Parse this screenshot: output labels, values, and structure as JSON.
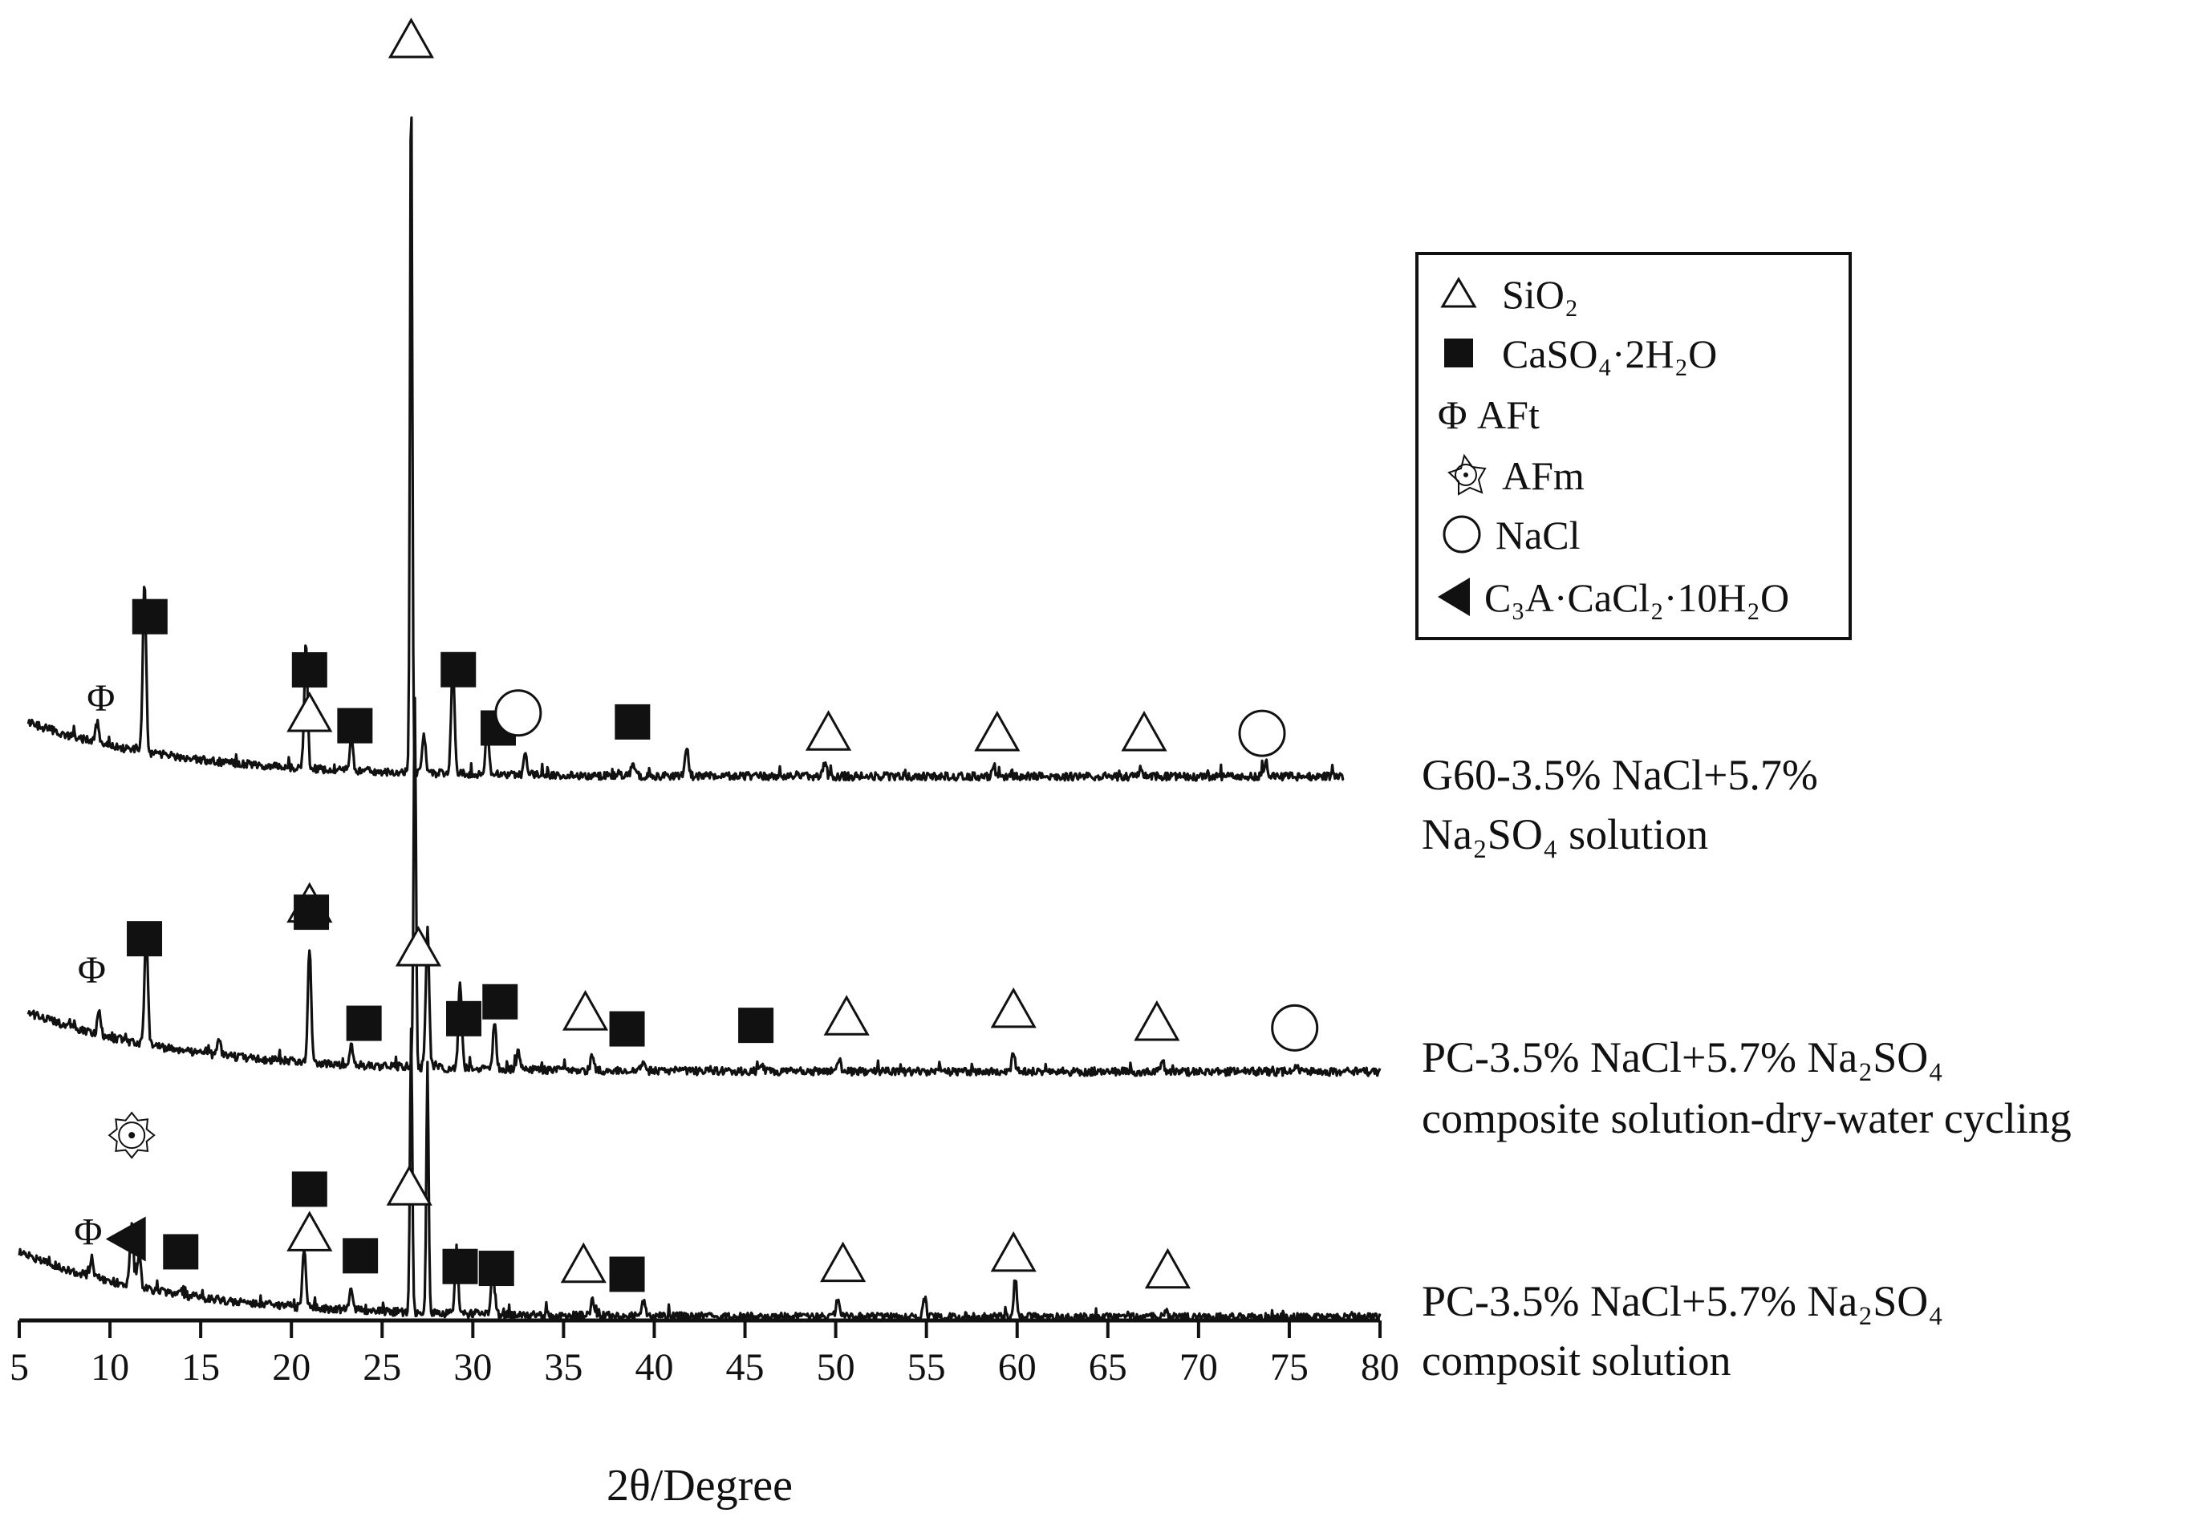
{
  "chart_data": {
    "type": "line",
    "title": "",
    "xlabel": "2θ/Degree",
    "ylabel": "",
    "xlim": [
      5,
      80
    ],
    "xticks": [
      5,
      10,
      15,
      20,
      25,
      30,
      35,
      40,
      45,
      50,
      55,
      60,
      65,
      70,
      75,
      80
    ],
    "legend": {
      "placement": "top-right",
      "entries": [
        {
          "symbol": "triangle-open",
          "label": "SiO₂"
        },
        {
          "symbol": "square-filled",
          "label": "CaSO₄·2H₂O"
        },
        {
          "symbol": "phi",
          "label": "Φ AFt"
        },
        {
          "symbol": "afm",
          "label": "AFm"
        },
        {
          "symbol": "circle-open",
          "label": "NaCl"
        },
        {
          "symbol": "triangle-left-filled",
          "label": "C₃A·CaCl₂·10H₂O"
        }
      ]
    },
    "series": [
      {
        "name": "G60-3.5% NaCl+5.7% Na₂SO₄ solution",
        "label_lines": [
          "G60-3.5% NaCl+5.7%",
          "Na₂SO₄ solution"
        ],
        "x_range": [
          5.5,
          78
        ],
        "peaks": [
          [
            9.3,
            0.05
          ],
          [
            11.9,
            0.42
          ],
          [
            20.8,
            0.31
          ],
          [
            23.3,
            0.08
          ],
          [
            26.6,
            1.72
          ],
          [
            27.3,
            0.1
          ],
          [
            28.9,
            0.28
          ],
          [
            30.8,
            0.12
          ],
          [
            32.9,
            0.05
          ],
          [
            38.8,
            0.03
          ],
          [
            41.8,
            0.07
          ],
          [
            49.4,
            0.03
          ],
          [
            58.7,
            0.02
          ],
          [
            66.8,
            0.02
          ],
          [
            73.7,
            0.04
          ]
        ],
        "phase_markers": [
          {
            "type": "phi",
            "x": 9.5,
            "text": "Φ"
          },
          {
            "type": "square",
            "x": 12.2
          },
          {
            "type": "triangle",
            "x": 21.0
          },
          {
            "type": "square",
            "x": 21.0
          },
          {
            "type": "square",
            "x": 23.5
          },
          {
            "type": "triangle",
            "x": 26.6
          },
          {
            "type": "square",
            "x": 29.2
          },
          {
            "type": "square",
            "x": 31.4
          },
          {
            "type": "circle",
            "x": 32.5
          },
          {
            "type": "square",
            "x": 38.8
          },
          {
            "type": "triangle",
            "x": 49.6
          },
          {
            "type": "triangle",
            "x": 58.9
          },
          {
            "type": "triangle",
            "x": 67.0
          },
          {
            "type": "circle",
            "x": 73.5
          }
        ]
      },
      {
        "name": "PC-3.5% NaCl+5.7% Na₂SO₄ composite solution-dry-water cycling",
        "label_lines": [
          "PC-3.5% NaCl+5.7% Na₂SO₄",
          "composite solution-dry-water cycling"
        ],
        "x_range": [
          5.5,
          80
        ],
        "peaks": [
          [
            9.4,
            0.06
          ],
          [
            12.0,
            0.3
          ],
          [
            16.0,
            0.04
          ],
          [
            21.0,
            0.3
          ],
          [
            23.3,
            0.05
          ],
          [
            26.8,
            0.97
          ],
          [
            27.5,
            0.36
          ],
          [
            29.3,
            0.22
          ],
          [
            31.2,
            0.12
          ],
          [
            32.5,
            0.05
          ],
          [
            36.6,
            0.04
          ],
          [
            39.4,
            0.03
          ],
          [
            45.9,
            0.02
          ],
          [
            50.2,
            0.03
          ],
          [
            59.8,
            0.05
          ],
          [
            68.0,
            0.03
          ],
          [
            75.4,
            0.01
          ]
        ],
        "phase_markers": [
          {
            "type": "phi",
            "x": 9.0,
            "text": "Φ"
          },
          {
            "type": "square",
            "x": 11.9
          },
          {
            "type": "triangle",
            "x": 21.0
          },
          {
            "type": "square",
            "x": 21.1
          },
          {
            "type": "square",
            "x": 24.0
          },
          {
            "type": "triangle",
            "x": 27.0
          },
          {
            "type": "square",
            "x": 29.5
          },
          {
            "type": "square",
            "x": 31.5
          },
          {
            "type": "triangle",
            "x": 36.2
          },
          {
            "type": "square",
            "x": 38.5
          },
          {
            "type": "square",
            "x": 45.6
          },
          {
            "type": "triangle",
            "x": 50.6
          },
          {
            "type": "triangle",
            "x": 59.8
          },
          {
            "type": "triangle",
            "x": 67.7
          },
          {
            "type": "circle",
            "x": 75.3
          }
        ]
      },
      {
        "name": "PC-3.5% NaCl+5.7% Na₂SO₄ composit solution",
        "label_lines": [
          "PC-3.5% NaCl+5.7% Na₂SO₄",
          "composit solution"
        ],
        "x_range": [
          5.0,
          80
        ],
        "peaks": [
          [
            9.0,
            0.05
          ],
          [
            11.2,
            0.17
          ],
          [
            11.6,
            0.09
          ],
          [
            20.7,
            0.15
          ],
          [
            23.3,
            0.06
          ],
          [
            26.6,
            0.75
          ],
          [
            27.5,
            0.65
          ],
          [
            29.1,
            0.15
          ],
          [
            31.1,
            0.12
          ],
          [
            36.6,
            0.04
          ],
          [
            39.4,
            0.04
          ],
          [
            50.1,
            0.05
          ],
          [
            54.9,
            0.05
          ],
          [
            59.9,
            0.1
          ],
          [
            68.2,
            0.02
          ]
        ],
        "phase_markers": [
          {
            "type": "phi",
            "x": 8.8,
            "text": "Φ"
          },
          {
            "type": "triangle-left",
            "x": 11.0
          },
          {
            "type": "afm",
            "x": 11.2
          },
          {
            "type": "square",
            "x": 13.9
          },
          {
            "type": "triangle",
            "x": 21.0
          },
          {
            "type": "square",
            "x": 21.0
          },
          {
            "type": "square",
            "x": 23.8
          },
          {
            "type": "triangle",
            "x": 26.5
          },
          {
            "type": "square",
            "x": 29.3
          },
          {
            "type": "square",
            "x": 31.3
          },
          {
            "type": "triangle",
            "x": 36.1
          },
          {
            "type": "square",
            "x": 38.5
          },
          {
            "type": "triangle",
            "x": 50.4
          },
          {
            "type": "triangle",
            "x": 59.8
          },
          {
            "type": "triangle",
            "x": 68.3
          }
        ]
      }
    ]
  }
}
